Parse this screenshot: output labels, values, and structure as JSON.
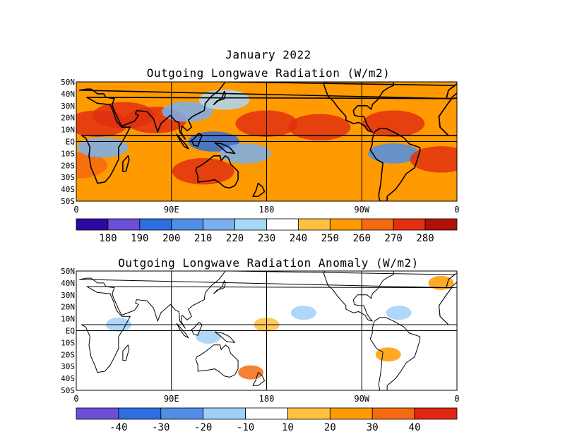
{
  "page": {
    "date_title": "January 2022"
  },
  "chart_data": [
    {
      "type": "heatmap",
      "title": "Outgoing Longwave Radiation (W/m2)",
      "xticks": [
        "0",
        "90E",
        "180",
        "90W",
        "0"
      ],
      "yticks": [
        "50N",
        "40N",
        "30N",
        "20N",
        "10N",
        "EQ",
        "10S",
        "20S",
        "30S",
        "40S",
        "50S"
      ],
      "xlim": [
        0,
        360
      ],
      "ylim": [
        -50,
        50
      ],
      "colorbar": {
        "labels": [
          "180",
          "190",
          "200",
          "210",
          "220",
          "230",
          "240",
          "250",
          "260",
          "270",
          "280"
        ],
        "colors": [
          "#2a0aa0",
          "#6b4fd6",
          "#2c6fe0",
          "#4f8fe8",
          "#7ab0f0",
          "#a8d8f8",
          "#ffffff",
          "#ffc040",
          "#ff9a00",
          "#f56a10",
          "#e03010",
          "#b01008"
        ]
      },
      "features": [
        {
          "lon": 20,
          "lat": 15,
          "value": 272
        },
        {
          "lon": 45,
          "lat": 22,
          "value": 278
        },
        {
          "lon": 75,
          "lat": 18,
          "value": 270
        },
        {
          "lon": 0,
          "lat": -20,
          "value": 268
        },
        {
          "lon": 25,
          "lat": -5,
          "value": 215
        },
        {
          "lon": 105,
          "lat": 25,
          "value": 212
        },
        {
          "lon": 140,
          "lat": 35,
          "value": 225
        },
        {
          "lon": 130,
          "lat": 0,
          "value": 198
        },
        {
          "lon": 160,
          "lat": -10,
          "value": 218
        },
        {
          "lon": 180,
          "lat": 15,
          "value": 276
        },
        {
          "lon": 230,
          "lat": 12,
          "value": 272
        },
        {
          "lon": 300,
          "lat": 15,
          "value": 275
        },
        {
          "lon": 300,
          "lat": -10,
          "value": 205
        },
        {
          "lon": 345,
          "lat": -15,
          "value": 275
        },
        {
          "lon": 120,
          "lat": -25,
          "value": 270
        }
      ]
    },
    {
      "type": "heatmap",
      "title": "Outgoing Longwave Radiation Anomaly (W/m2)",
      "xticks": [
        "0",
        "90E",
        "180",
        "90W",
        "0"
      ],
      "yticks": [
        "50N",
        "40N",
        "30N",
        "20N",
        "10N",
        "EQ",
        "10S",
        "20S",
        "30S",
        "40S",
        "50S"
      ],
      "xlim": [
        0,
        360
      ],
      "ylim": [
        -50,
        50
      ],
      "colorbar": {
        "labels": [
          "-40",
          "-30",
          "-20",
          "-10",
          "10",
          "20",
          "30",
          "40"
        ],
        "colors": [
          "#6b4fd6",
          "#2c6fe0",
          "#4f8fe8",
          "#a0d0f8",
          "#ffffff",
          "#ffc040",
          "#ff9a00",
          "#f56a10",
          "#e02810"
        ]
      },
      "features": [
        {
          "lon": 180,
          "lat": 5,
          "value": 18
        },
        {
          "lon": 215,
          "lat": 15,
          "value": -15
        },
        {
          "lon": 295,
          "lat": -20,
          "value": 28
        },
        {
          "lon": 305,
          "lat": 15,
          "value": -18
        },
        {
          "lon": 345,
          "lat": 40,
          "value": 20
        },
        {
          "lon": 165,
          "lat": -35,
          "value": 30
        },
        {
          "lon": 125,
          "lat": -5,
          "value": -14
        },
        {
          "lon": 40,
          "lat": 5,
          "value": -12
        }
      ]
    }
  ]
}
